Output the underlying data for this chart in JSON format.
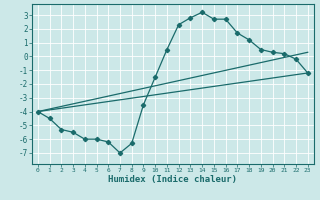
{
  "xlabel": "Humidex (Indice chaleur)",
  "background_color": "#cce8e8",
  "grid_color": "#ffffff",
  "line_color": "#1a6b6b",
  "xlim": [
    -0.5,
    23.5
  ],
  "ylim": [
    -7.8,
    3.8
  ],
  "yticks": [
    -7,
    -6,
    -5,
    -4,
    -3,
    -2,
    -1,
    0,
    1,
    2,
    3
  ],
  "xticks": [
    0,
    1,
    2,
    3,
    4,
    5,
    6,
    7,
    8,
    9,
    10,
    11,
    12,
    13,
    14,
    15,
    16,
    17,
    18,
    19,
    20,
    21,
    22,
    23
  ],
  "line1_x": [
    0,
    1,
    2,
    3,
    4,
    5,
    6,
    7,
    8,
    9,
    10,
    11,
    12,
    13,
    14,
    15,
    16,
    17,
    18,
    19,
    20,
    21,
    22,
    23
  ],
  "line1_y": [
    -4.0,
    -4.5,
    -5.3,
    -5.5,
    -6.0,
    -6.0,
    -6.2,
    -7.0,
    -6.3,
    -3.5,
    -1.5,
    0.5,
    2.3,
    2.8,
    3.2,
    2.7,
    2.7,
    1.7,
    1.2,
    0.5,
    0.3,
    0.2,
    -0.2,
    -1.2
  ],
  "line2_x": [
    0,
    23
  ],
  "line2_y": [
    -4.0,
    -1.2
  ],
  "line3_x": [
    0,
    23
  ],
  "line3_y": [
    -4.0,
    0.3
  ]
}
